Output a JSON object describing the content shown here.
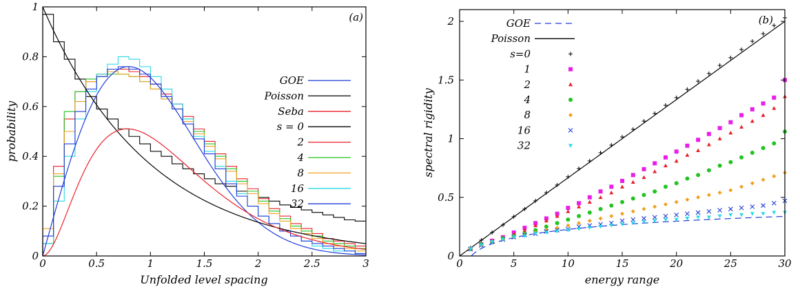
{
  "chart_data": [
    {
      "type": "line",
      "panel_label": "(a)",
      "xlabel": "Unfolded level spacing",
      "ylabel": "probability",
      "xlim": [
        0,
        3
      ],
      "ylim": [
        0,
        1
      ],
      "xticks": [
        "0",
        "0.5",
        "1",
        "1.5",
        "2",
        "2.5",
        "3"
      ],
      "yticks": [
        "0",
        "0.2",
        "0.4",
        "0.6",
        "0.8",
        "1"
      ],
      "legend_position": "center-right",
      "curves": [
        {
          "name": "GOE",
          "color": "#1f3bd6",
          "kind": "wigner"
        },
        {
          "name": "Poisson",
          "color": "#000000",
          "kind": "poisson"
        },
        {
          "name": "Seba",
          "color": "#e8202a",
          "kind": "seba"
        }
      ],
      "histograms": [
        {
          "name": "s = 0",
          "color": "#000000",
          "bin_width": 0.1,
          "values": [
            0.97,
            0.86,
            0.79,
            0.71,
            0.64,
            0.59,
            0.55,
            0.51,
            0.48,
            0.45,
            0.42,
            0.4,
            0.37,
            0.35,
            0.33,
            0.31,
            0.29,
            0.28,
            0.26,
            0.25,
            0.235,
            0.22,
            0.205,
            0.195,
            0.185,
            0.175,
            0.165,
            0.155,
            0.145,
            0.14
          ]
        },
        {
          "name": "2",
          "color": "#e8202a",
          "bin_width": 0.1,
          "values": [
            0.05,
            0.36,
            0.55,
            0.66,
            0.7,
            0.73,
            0.75,
            0.75,
            0.74,
            0.72,
            0.69,
            0.65,
            0.61,
            0.56,
            0.51,
            0.46,
            0.41,
            0.36,
            0.31,
            0.27,
            0.23,
            0.19,
            0.16,
            0.13,
            0.11,
            0.09,
            0.07,
            0.06,
            0.05,
            0.04
          ]
        },
        {
          "name": "4",
          "color": "#22c322",
          "bin_width": 0.1,
          "values": [
            0.05,
            0.32,
            0.58,
            0.66,
            0.71,
            0.72,
            0.73,
            0.73,
            0.72,
            0.7,
            0.67,
            0.63,
            0.59,
            0.55,
            0.5,
            0.45,
            0.4,
            0.35,
            0.3,
            0.26,
            0.22,
            0.18,
            0.15,
            0.12,
            0.1,
            0.08,
            0.06,
            0.05,
            0.04,
            0.03
          ]
        },
        {
          "name": "8",
          "color": "#f0a020",
          "bin_width": 0.1,
          "values": [
            0.11,
            0.33,
            0.5,
            0.62,
            0.7,
            0.73,
            0.74,
            0.73,
            0.72,
            0.7,
            0.67,
            0.63,
            0.59,
            0.54,
            0.49,
            0.44,
            0.39,
            0.34,
            0.29,
            0.25,
            0.21,
            0.17,
            0.14,
            0.11,
            0.09,
            0.07,
            0.05,
            0.04,
            0.03,
            0.02
          ]
        },
        {
          "name": "16",
          "color": "#28d8e8",
          "bin_width": 0.1,
          "values": [
            0.05,
            0.22,
            0.4,
            0.55,
            0.66,
            0.73,
            0.77,
            0.8,
            0.79,
            0.76,
            0.72,
            0.67,
            0.61,
            0.55,
            0.48,
            0.42,
            0.36,
            0.3,
            0.25,
            0.2,
            0.16,
            0.13,
            0.1,
            0.08,
            0.06,
            0.04,
            0.03,
            0.02,
            0.02,
            0.01
          ]
        },
        {
          "name": "32",
          "color": "#1f3bd6",
          "bin_width": 0.1,
          "values": [
            0.08,
            0.28,
            0.45,
            0.58,
            0.67,
            0.72,
            0.75,
            0.76,
            0.75,
            0.73,
            0.69,
            0.64,
            0.59,
            0.53,
            0.47,
            0.41,
            0.35,
            0.29,
            0.24,
            0.2,
            0.16,
            0.13,
            0.1,
            0.08,
            0.06,
            0.05,
            0.04,
            0.03,
            0.02,
            0.01
          ]
        }
      ]
    },
    {
      "type": "scatter",
      "panel_label": "(b)",
      "xlabel": "energy range",
      "ylabel": "spectral rigidity",
      "xlim": [
        0,
        30
      ],
      "ylim": [
        0,
        2.1
      ],
      "xticks": [
        "0",
        "5",
        "10",
        "15",
        "20",
        "25",
        "30"
      ],
      "yticks": [
        "0",
        "0.5",
        "1",
        "1.5",
        "2"
      ],
      "legend_position": "top-left",
      "curves": [
        {
          "name": "GOE",
          "color": "#1f3bd6",
          "dash": true,
          "kind": "goe_rigidity"
        },
        {
          "name": "Poisson",
          "color": "#000000",
          "dash": false,
          "kind": "poisson_rigidity"
        }
      ],
      "series": [
        {
          "name": "s=0",
          "color": "#000000",
          "marker": "plus",
          "x": [
            1,
            2,
            3,
            4,
            5,
            6,
            7,
            8,
            9,
            10,
            11,
            12,
            13,
            14,
            15,
            16,
            17,
            18,
            19,
            20,
            21,
            22,
            23,
            24,
            25,
            26,
            27,
            28,
            29,
            30
          ],
          "y": [
            0.07,
            0.135,
            0.2,
            0.265,
            0.335,
            0.4,
            0.47,
            0.54,
            0.605,
            0.675,
            0.745,
            0.81,
            0.88,
            0.945,
            1.015,
            1.08,
            1.15,
            1.215,
            1.285,
            1.35,
            1.42,
            1.49,
            1.555,
            1.625,
            1.69,
            1.76,
            1.83,
            1.895,
            1.965,
            2.03
          ]
        },
        {
          "name": "1",
          "color": "#e81ee8",
          "marker": "square",
          "x": [
            1,
            2,
            3,
            4,
            5,
            6,
            7,
            8,
            9,
            10,
            11,
            12,
            13,
            14,
            15,
            16,
            17,
            18,
            19,
            20,
            21,
            22,
            23,
            24,
            25,
            26,
            27,
            28,
            29,
            30
          ],
          "y": [
            0.06,
            0.1,
            0.13,
            0.16,
            0.2,
            0.24,
            0.28,
            0.32,
            0.36,
            0.41,
            0.45,
            0.5,
            0.55,
            0.59,
            0.64,
            0.69,
            0.74,
            0.79,
            0.84,
            0.89,
            0.94,
            0.99,
            1.04,
            1.09,
            1.14,
            1.2,
            1.25,
            1.3,
            1.35,
            1.5
          ]
        },
        {
          "name": "2",
          "color": "#e8202a",
          "marker": "triangle",
          "x": [
            1,
            2,
            3,
            4,
            5,
            6,
            7,
            8,
            9,
            10,
            11,
            12,
            13,
            14,
            15,
            16,
            17,
            18,
            19,
            20,
            21,
            22,
            23,
            24,
            25,
            26,
            27,
            28,
            29,
            30
          ],
          "y": [
            0.06,
            0.1,
            0.13,
            0.16,
            0.19,
            0.22,
            0.26,
            0.3,
            0.34,
            0.38,
            0.42,
            0.46,
            0.5,
            0.54,
            0.59,
            0.63,
            0.67,
            0.72,
            0.77,
            0.81,
            0.86,
            0.9,
            0.95,
            1.0,
            1.05,
            1.1,
            1.15,
            1.2,
            1.26,
            1.36
          ]
        },
        {
          "name": "4",
          "color": "#22c322",
          "marker": "circle",
          "x": [
            1,
            2,
            3,
            4,
            5,
            6,
            7,
            8,
            9,
            10,
            11,
            12,
            13,
            14,
            15,
            16,
            17,
            18,
            19,
            20,
            21,
            22,
            23,
            24,
            25,
            26,
            27,
            28,
            29,
            30
          ],
          "y": [
            0.06,
            0.1,
            0.12,
            0.15,
            0.17,
            0.19,
            0.22,
            0.25,
            0.28,
            0.31,
            0.34,
            0.37,
            0.4,
            0.43,
            0.46,
            0.49,
            0.52,
            0.55,
            0.59,
            0.62,
            0.66,
            0.69,
            0.73,
            0.77,
            0.8,
            0.84,
            0.88,
            0.92,
            0.96,
            1.06
          ]
        },
        {
          "name": "8",
          "color": "#f0a020",
          "marker": "diamond",
          "x": [
            1,
            2,
            3,
            4,
            5,
            6,
            7,
            8,
            9,
            10,
            11,
            12,
            13,
            14,
            15,
            16,
            17,
            18,
            19,
            20,
            21,
            22,
            23,
            24,
            25,
            26,
            27,
            28,
            29,
            30
          ],
          "y": [
            0.06,
            0.09,
            0.12,
            0.14,
            0.16,
            0.18,
            0.2,
            0.22,
            0.24,
            0.26,
            0.28,
            0.3,
            0.32,
            0.34,
            0.36,
            0.38,
            0.4,
            0.42,
            0.44,
            0.46,
            0.48,
            0.5,
            0.52,
            0.54,
            0.56,
            0.59,
            0.62,
            0.65,
            0.68,
            0.71
          ]
        },
        {
          "name": "16",
          "color": "#1f3bd6",
          "marker": "cross",
          "x": [
            1,
            2,
            3,
            4,
            5,
            6,
            7,
            8,
            9,
            10,
            11,
            12,
            13,
            14,
            15,
            16,
            17,
            18,
            19,
            20,
            21,
            22,
            23,
            24,
            25,
            26,
            27,
            28,
            29,
            30
          ],
          "y": [
            0.06,
            0.09,
            0.12,
            0.14,
            0.16,
            0.18,
            0.19,
            0.21,
            0.22,
            0.23,
            0.25,
            0.26,
            0.27,
            0.28,
            0.3,
            0.31,
            0.32,
            0.33,
            0.34,
            0.35,
            0.36,
            0.37,
            0.38,
            0.39,
            0.4,
            0.41,
            0.42,
            0.43,
            0.45,
            0.47
          ]
        },
        {
          "name": "32",
          "color": "#28d8e8",
          "marker": "invtriangle",
          "x": [
            1,
            2,
            3,
            4,
            5,
            6,
            7,
            8,
            9,
            10,
            11,
            12,
            13,
            14,
            15,
            16,
            17,
            18,
            19,
            20,
            21,
            22,
            23,
            24,
            25,
            26,
            27,
            28,
            29,
            30
          ],
          "y": [
            0.06,
            0.09,
            0.12,
            0.14,
            0.16,
            0.17,
            0.19,
            0.2,
            0.21,
            0.22,
            0.23,
            0.24,
            0.25,
            0.26,
            0.27,
            0.28,
            0.29,
            0.3,
            0.31,
            0.31,
            0.32,
            0.33,
            0.33,
            0.34,
            0.35,
            0.35,
            0.36,
            0.36,
            0.37,
            0.37
          ]
        }
      ]
    }
  ]
}
